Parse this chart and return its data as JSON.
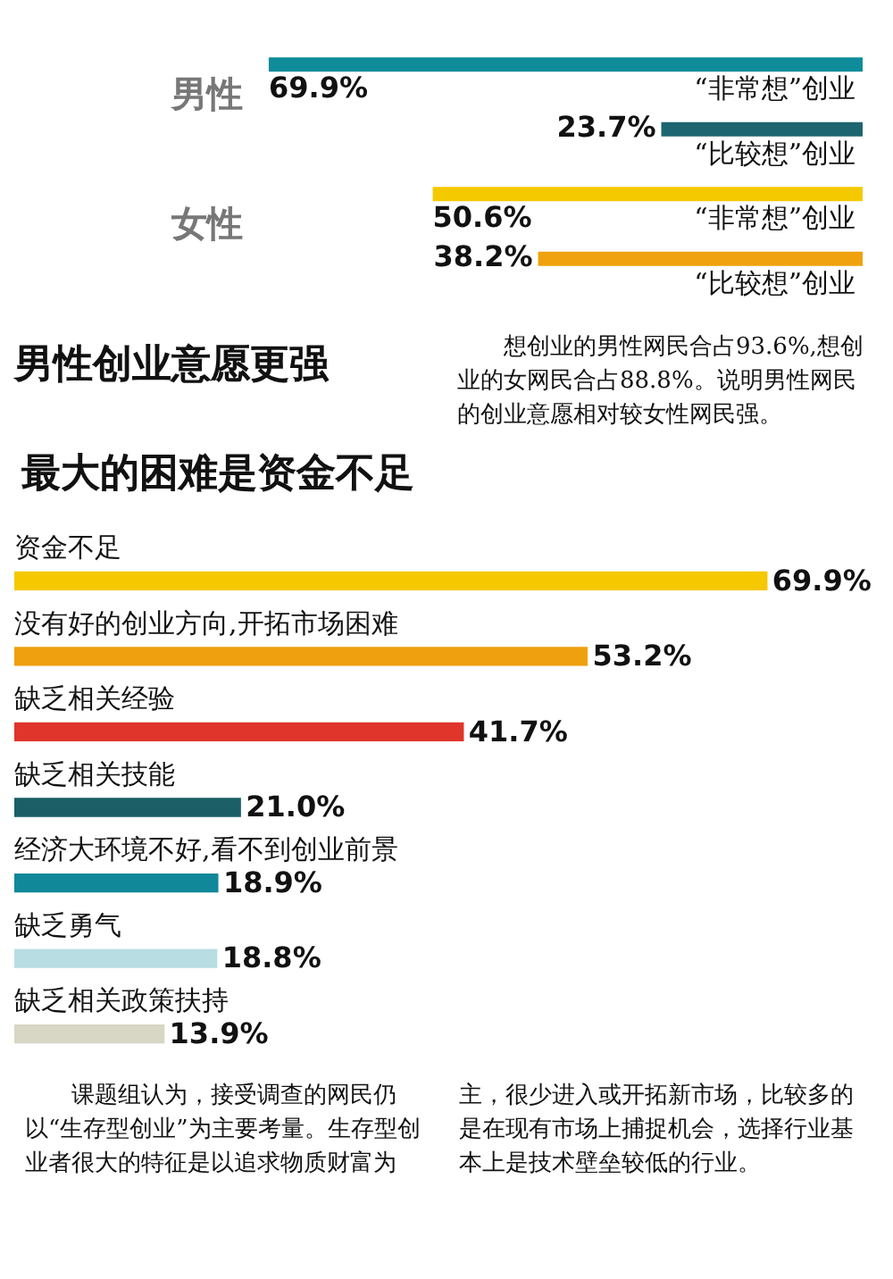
{
  "chart_data": [
    {
      "type": "bar",
      "orientation": "horizontal",
      "title": "男性创业意愿更强",
      "categories": [
        "男性",
        "女性"
      ],
      "series": [
        {
          "name": "“非常想”创业",
          "colors": [
            "#0e8c9a",
            "#f5c900"
          ],
          "values": [
            69.9,
            50.6
          ],
          "value_labels": [
            "69.9%",
            "50.6%"
          ]
        },
        {
          "name": "“比较想”创业",
          "colors": [
            "#1d6570",
            "#efa10e"
          ],
          "values": [
            23.7,
            38.2
          ],
          "value_labels": [
            "23.7%",
            "38.2%"
          ]
        }
      ],
      "tick_labels": "y",
      "annotations": [
        "想创业的男性网民合占93.6%,想创业的女网民合占88.8%。说明男性网民的创业意愿相对较女性网民强。"
      ]
    },
    {
      "type": "bar",
      "orientation": "horizontal",
      "title": "最大的困难是资金不足",
      "categories": [
        "资金不足",
        "没有好的创业方向,开拓市场困难",
        "缺乏相关经验",
        "缺乏相关技能",
        "经济大环境不好,看不到创业前景",
        "缺乏勇气",
        "缺乏相关政策扶持"
      ],
      "values": [
        69.9,
        53.2,
        41.7,
        21.0,
        18.9,
        18.8,
        13.9
      ],
      "value_labels": [
        "69.9%",
        "53.2%",
        "41.7%",
        "21.0%",
        "18.9%",
        "18.8%",
        "13.9%"
      ],
      "colors": [
        "#f5c800",
        "#efa00e",
        "#e0352a",
        "#1b5e66",
        "#10889a",
        "#b8dde3",
        "#d8d6c4"
      ],
      "tick_labels": "y",
      "annotations": [
        "课题组认为，接受调查的网民仍以“生存型创业”为主要考量。生存型创业者很大的特征是以追求物质财富为主，很少进入或开拓新市场，比较多的是在现有市场上捕捉机会，选择行业基本上是技术壁垒较低的行业。"
      ]
    }
  ]
}
